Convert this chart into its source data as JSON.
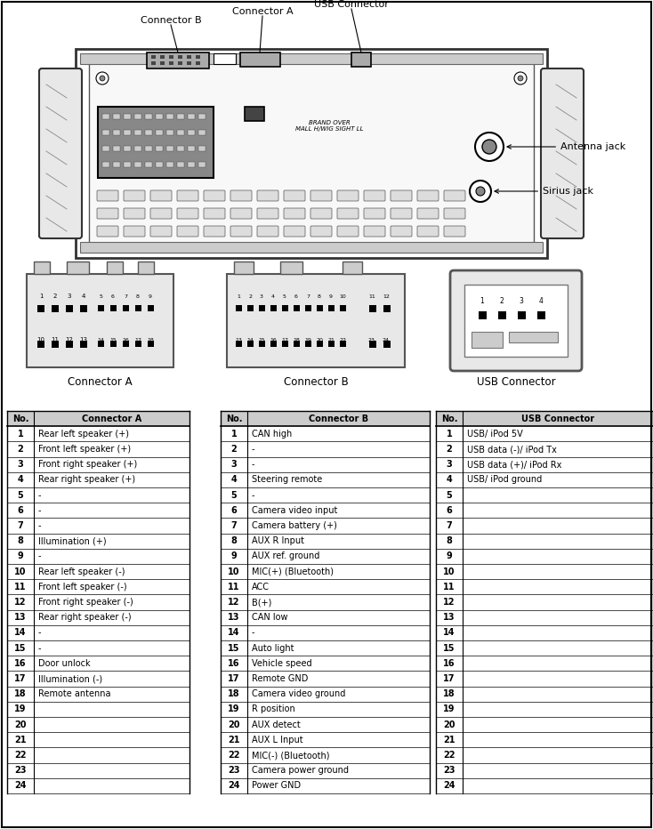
{
  "connector_a_data": [
    [
      "1",
      "Rear left speaker (+)"
    ],
    [
      "2",
      "Front left speaker (+)"
    ],
    [
      "3",
      "Front right speaker (+)"
    ],
    [
      "4",
      "Rear right speaker (+)"
    ],
    [
      "5",
      "-"
    ],
    [
      "6",
      "-"
    ],
    [
      "7",
      "-"
    ],
    [
      "8",
      "Illumination (+)"
    ],
    [
      "9",
      "-"
    ],
    [
      "10",
      "Rear left speaker (-)"
    ],
    [
      "11",
      "Front left speaker (-)"
    ],
    [
      "12",
      "Front right speaker (-)"
    ],
    [
      "13",
      "Rear right speaker (-)"
    ],
    [
      "14",
      "-"
    ],
    [
      "15",
      "-"
    ],
    [
      "16",
      "Door unlock"
    ],
    [
      "17",
      "Illumination (-)"
    ],
    [
      "18",
      "Remote antenna"
    ],
    [
      "19",
      ""
    ],
    [
      "20",
      ""
    ],
    [
      "21",
      ""
    ],
    [
      "22",
      ""
    ],
    [
      "23",
      ""
    ],
    [
      "24",
      ""
    ]
  ],
  "connector_b_data": [
    [
      "1",
      "CAN high"
    ],
    [
      "2",
      "-"
    ],
    [
      "3",
      "-"
    ],
    [
      "4",
      "Steering remote"
    ],
    [
      "5",
      "-"
    ],
    [
      "6",
      "Camera video input"
    ],
    [
      "7",
      "Camera battery (+)"
    ],
    [
      "8",
      "AUX R Input"
    ],
    [
      "9",
      "AUX ref. ground"
    ],
    [
      "10",
      "MIC(+) (Bluetooth)"
    ],
    [
      "11",
      "ACC"
    ],
    [
      "12",
      "B(+)"
    ],
    [
      "13",
      "CAN low"
    ],
    [
      "14",
      "-"
    ],
    [
      "15",
      "Auto light"
    ],
    [
      "16",
      "Vehicle speed"
    ],
    [
      "17",
      "Remote GND"
    ],
    [
      "18",
      "Camera video ground"
    ],
    [
      "19",
      "R position"
    ],
    [
      "20",
      "AUX detect"
    ],
    [
      "21",
      "AUX L Input"
    ],
    [
      "22",
      "MIC(-) (Bluetooth)"
    ],
    [
      "23",
      "Camera power ground"
    ],
    [
      "24",
      "Power GND"
    ]
  ],
  "usb_data": [
    [
      "1",
      "USB/ iPod 5V"
    ],
    [
      "2",
      "USB data (-)/ iPod Tx"
    ],
    [
      "3",
      "USB data (+)/ iPod Rx"
    ],
    [
      "4",
      "USB/ iPod ground"
    ],
    [
      "5",
      ""
    ],
    [
      "6",
      ""
    ],
    [
      "7",
      ""
    ],
    [
      "8",
      ""
    ],
    [
      "9",
      ""
    ],
    [
      "10",
      ""
    ],
    [
      "11",
      ""
    ],
    [
      "12",
      ""
    ],
    [
      "13",
      ""
    ],
    [
      "14",
      ""
    ],
    [
      "15",
      ""
    ],
    [
      "16",
      ""
    ],
    [
      "17",
      ""
    ],
    [
      "18",
      ""
    ],
    [
      "19",
      ""
    ],
    [
      "20",
      ""
    ],
    [
      "21",
      ""
    ],
    [
      "22",
      ""
    ],
    [
      "23",
      ""
    ],
    [
      "24",
      ""
    ]
  ],
  "bg_color": "#ffffff",
  "table_header_bg": "#cccccc",
  "table_line_color": "#000000",
  "text_color": "#000000",
  "font_size": 7.0
}
